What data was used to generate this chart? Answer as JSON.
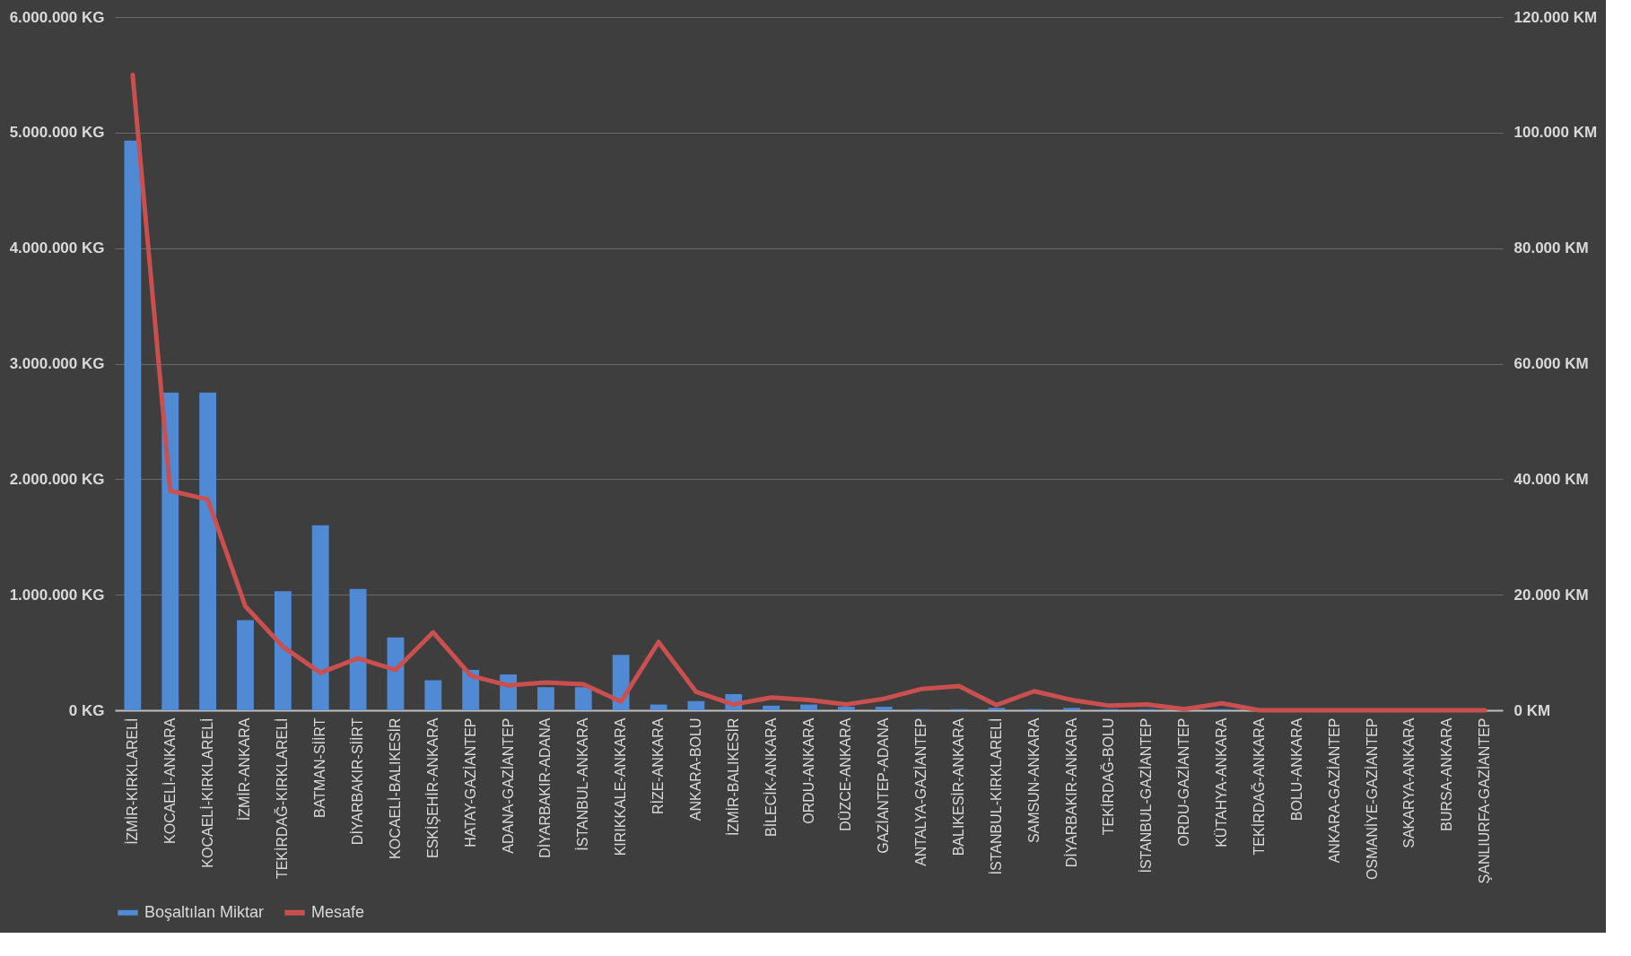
{
  "chart_data": {
    "type": "bar",
    "categories": [
      "İZMİR-KIRKLARELİ",
      "KOCAELİ-ANKARA",
      "KOCAELİ-KIRKLARELİ",
      "İZMİR-ANKARA",
      "TEKİRDAĞ-KIRKLARELİ",
      "BATMAN-SİİRT",
      "DİYARBAKIR-SİİRT",
      "KOCAELİ-BALIKESİR",
      "ESKİŞEHİR-ANKARA",
      "HATAY-GAZİANTEP",
      "ADANA-GAZİANTEP",
      "DİYARBAKIR-ADANA",
      "İSTANBUL-ANKARA",
      "KIRIKKALE-ANKARA",
      "RİZE-ANKARA",
      "ANKARA-BOLU",
      "İZMİR-BALIKESİR",
      "BİLECİK-ANKARA",
      "ORDU-ANKARA",
      "DÜZCE-ANKARA",
      "GAZİANTEP-ADANA",
      "ANTALYA-GAZİANTEP",
      "BALIKESİR-ANKARA",
      "İSTANBUL-KIRKLARELİ",
      "SAMSUN-ANKARA",
      "DİYARBAKIR-ANKARA",
      "TEKİRDAĞ-BOLU",
      "İSTANBUL-GAZİANTEP",
      "ORDU-GAZİANTEP",
      "KÜTAHYA-ANKARA",
      "TEKİRDAĞ-ANKARA",
      "BOLU-ANKARA",
      "ANKARA-GAZİANTEP",
      "OSMANİYE-GAZİANTEP",
      "SAKARYA-ANKARA",
      "BURSA-ANKARA",
      "ŞANLIURFA-GAZİANTEP"
    ],
    "series": [
      {
        "name": "Boşaltılan Miktar",
        "color": "#5089d4",
        "values": [
          4930000,
          2750000,
          2750000,
          780000,
          1030000,
          1600000,
          1050000,
          630000,
          260000,
          350000,
          310000,
          200000,
          200000,
          480000,
          50000,
          80000,
          140000,
          40000,
          50000,
          30000,
          30000,
          10000,
          10000,
          20000,
          10000,
          20000,
          10000,
          10000,
          0,
          10000,
          0,
          0,
          0,
          0,
          0,
          0,
          0
        ]
      },
      {
        "name": "Mesafe",
        "type": "line",
        "axis": "y2",
        "color": "#c9504f",
        "values": [
          110000,
          38000,
          36500,
          18000,
          11000,
          6500,
          9000,
          7000,
          13500,
          6000,
          4300,
          4800,
          4500,
          1500,
          11800,
          3200,
          1000,
          2200,
          1800,
          1000,
          2000,
          3700,
          4200,
          900,
          3300,
          1800,
          800,
          1000,
          200,
          1200,
          0,
          0,
          0,
          0,
          0,
          0,
          0
        ]
      }
    ],
    "ylim": [
      0,
      6000000
    ],
    "yticks": [
      {
        "value": 0,
        "label": "0 KG"
      },
      {
        "value": 1000000,
        "label": "1.000.000 KG"
      },
      {
        "value": 2000000,
        "label": "2.000.000 KG"
      },
      {
        "value": 3000000,
        "label": "3.000.000 KG"
      },
      {
        "value": 4000000,
        "label": "4.000.000 KG"
      },
      {
        "value": 5000000,
        "label": "5.000.000 KG"
      },
      {
        "value": 6000000,
        "label": "6.000.000 KG"
      }
    ],
    "y2lim": [
      0,
      120000
    ],
    "y2ticks": [
      {
        "value": 0,
        "label": "0 KM"
      },
      {
        "value": 20000,
        "label": "20.000 KM"
      },
      {
        "value": 40000,
        "label": "40.000 KM"
      },
      {
        "value": 60000,
        "label": "60.000 KM"
      },
      {
        "value": 80000,
        "label": "80.000 KM"
      },
      {
        "value": 100000,
        "label": "100.000 KM"
      },
      {
        "value": 120000,
        "label": "120.000 KM"
      }
    ],
    "grid": "y",
    "legend": "bottom"
  }
}
